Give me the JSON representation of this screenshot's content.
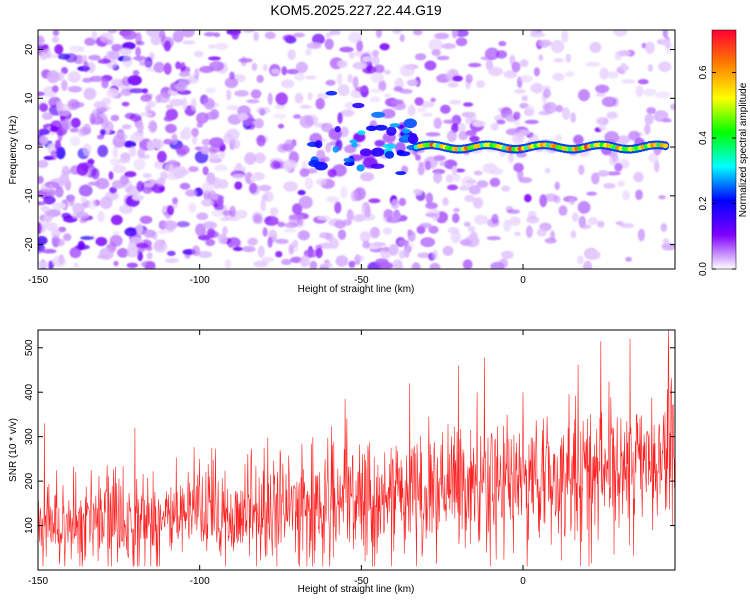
{
  "title": "KOM5.2025.227.22.44.G19",
  "chart_data": [
    {
      "type": "heatmap",
      "xlabel": "Height of straight line (km)",
      "ylabel": "Frequency (Hz)",
      "xlim": [
        -150,
        47
      ],
      "ylim": [
        -25,
        24
      ],
      "xticks": [
        -150,
        -100,
        -50,
        0
      ],
      "yticks": [
        -20,
        -10,
        0,
        10,
        20
      ],
      "colorbar": {
        "label": "Normalized spectral amplitude",
        "range": [
          0,
          0.73
        ],
        "ticks": [
          0.0,
          0.2,
          0.4,
          0.6
        ],
        "tick_labels": [
          "0.0",
          "0.2",
          "0.4",
          "0.6"
        ],
        "colors": [
          "#ffffff",
          "#7f00ff",
          "#0000ff",
          "#00ffff",
          "#00ff00",
          "#ffff00",
          "#ff7f00",
          "#ff0033"
        ]
      },
      "ridge": {
        "frequency_hz": 0,
        "start_km": -33,
        "end_km": 45,
        "peak_amplitude": 0.7
      }
    },
    {
      "type": "line",
      "xlabel": "Height of straight line (km)",
      "ylabel": "SNR (10 * v/v)",
      "xlim": [
        -150,
        47
      ],
      "ylim": [
        0,
        540
      ],
      "xticks": [
        -150,
        -100,
        -50,
        0
      ],
      "yticks": [
        100,
        200,
        300,
        400,
        500
      ],
      "color": "#ff2020",
      "series": [
        {
          "name": "SNR",
          "x_range": [
            -150,
            47
          ],
          "baseline_start": 105,
          "baseline_end": 250,
          "spikes": [
            {
              "x": -148,
              "y": 330
            },
            {
              "x": -120,
              "y": 320
            },
            {
              "x": -100,
              "y": 250
            },
            {
              "x": -80,
              "y": 275
            },
            {
              "x": -55,
              "y": 385
            },
            {
              "x": -35,
              "y": 420
            },
            {
              "x": -20,
              "y": 460
            },
            {
              "x": -12,
              "y": 478
            },
            {
              "x": 0,
              "y": 400
            },
            {
              "x": 17,
              "y": 462
            },
            {
              "x": 24,
              "y": 515
            },
            {
              "x": 33,
              "y": 520
            },
            {
              "x": 45,
              "y": 540
            }
          ]
        }
      ]
    }
  ]
}
